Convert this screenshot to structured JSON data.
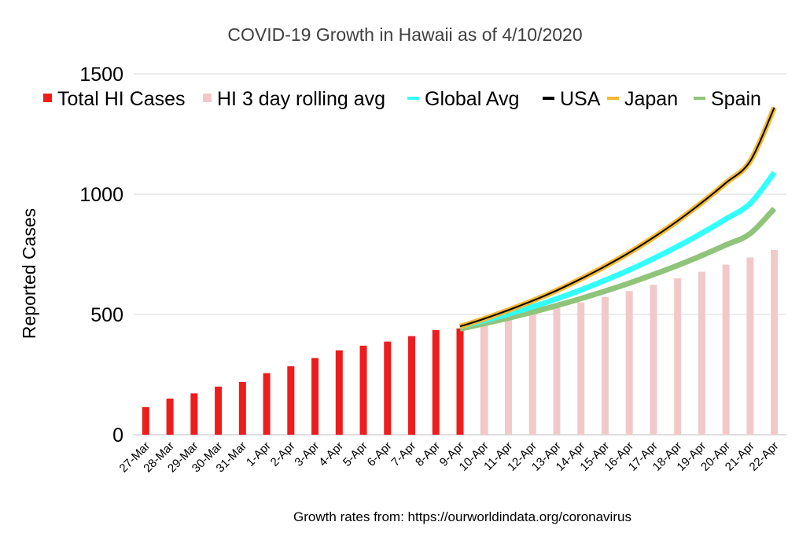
{
  "chart_data": {
    "type": "bar",
    "title": "COVID-19 Growth in Hawaii as of 4/10/2020",
    "ylabel": "Reported Cases",
    "xlabel": "",
    "source": "Growth rates from: https://ourworldindata.org/coronavirus",
    "ylim": [
      0,
      1500
    ],
    "yticks": [
      0,
      500,
      1000,
      1500
    ],
    "grid": true,
    "legend_position": "top",
    "categories": [
      "27-Mar",
      "28-Mar",
      "29-Mar",
      "30-Mar",
      "31-Mar",
      "1-Apr",
      "2-Apr",
      "3-Apr",
      "4-Apr",
      "5-Apr",
      "6-Apr",
      "7-Apr",
      "8-Apr",
      "9-Apr",
      "10-Apr",
      "11-Apr",
      "12-Apr",
      "13-Apr",
      "14-Apr",
      "15-Apr",
      "16-Apr",
      "17-Apr",
      "18-Apr",
      "19-Apr",
      "20-Apr",
      "21-Apr",
      "22-Apr"
    ],
    "series": [
      {
        "name": "Total HI Cases",
        "kind": "bar",
        "color": "#ee1c1c",
        "values": [
          115,
          150,
          172,
          200,
          219,
          256,
          285,
          319,
          351,
          370,
          387,
          410,
          435,
          442,
          465,
          null,
          null,
          null,
          null,
          null,
          null,
          null,
          null,
          null,
          null,
          null,
          null
        ]
      },
      {
        "name": "HI 3 day rolling avg",
        "kind": "bar",
        "color": "#f2c9c9",
        "values": [
          null,
          null,
          null,
          null,
          null,
          null,
          null,
          null,
          null,
          null,
          null,
          null,
          null,
          null,
          465,
          485,
          505,
          527,
          550,
          573,
          597,
          623,
          650,
          678,
          707,
          737,
          768
        ]
      },
      {
        "name": "Global Avg",
        "kind": "line",
        "color": "#33ffff",
        "values": [
          null,
          null,
          null,
          null,
          null,
          null,
          null,
          null,
          null,
          null,
          null,
          null,
          null,
          450,
          475,
          502,
          532,
          565,
          602,
          642,
          685,
          732,
          783,
          838,
          897,
          961,
          1090
        ]
      },
      {
        "name": "USA",
        "kind": "line",
        "color": "#000000",
        "values": [
          null,
          null,
          null,
          null,
          null,
          null,
          null,
          null,
          null,
          null,
          null,
          null,
          null,
          450,
          482,
          518,
          557,
          600,
          648,
          700,
          757,
          820,
          889,
          965,
          1047,
          1137,
          1360
        ]
      },
      {
        "name": "Japan",
        "kind": "line",
        "color": "#f5b82e",
        "values": [
          null,
          null,
          null,
          null,
          null,
          null,
          null,
          null,
          null,
          null,
          null,
          null,
          null,
          450,
          482,
          518,
          557,
          600,
          648,
          700,
          757,
          820,
          889,
          965,
          1047,
          1137,
          1360
        ]
      },
      {
        "name": "Spain",
        "kind": "line",
        "color": "#8fc47a",
        "values": [
          null,
          null,
          null,
          null,
          null,
          null,
          null,
          null,
          null,
          null,
          null,
          null,
          null,
          440,
          462,
          485,
          510,
          537,
          566,
          597,
          630,
          666,
          704,
          745,
          789,
          836,
          940
        ]
      }
    ]
  }
}
